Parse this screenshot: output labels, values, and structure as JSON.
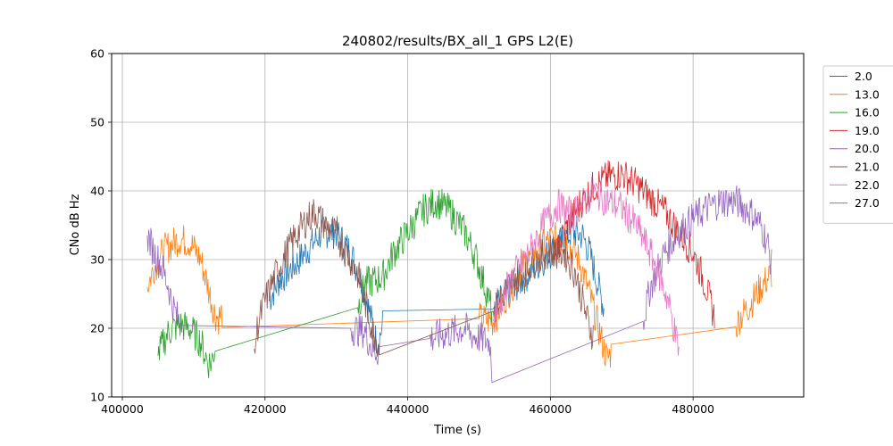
{
  "chart_data": {
    "type": "line",
    "title": "240802/results/BX_all_1 GPS L2(E)",
    "xlabel": "Time (s)",
    "ylabel": "CNo dB Hz",
    "xlim": [
      398500,
      495500
    ],
    "ylim": [
      10,
      60
    ],
    "xticks": [
      400000,
      420000,
      440000,
      460000,
      480000
    ],
    "xtick_labels": [
      "400000",
      "420000",
      "440000",
      "460000",
      "480000"
    ],
    "yticks": [
      10,
      20,
      30,
      40,
      50,
      60
    ],
    "ytick_labels": [
      "10",
      "20",
      "30",
      "40",
      "50",
      "60"
    ],
    "grid": true,
    "legend_position": "outside right, top",
    "series": [
      {
        "name": "2.0",
        "color": "#1f77b4",
        "points": [
          [
            420500,
            24
          ],
          [
            422000,
            27
          ],
          [
            424000,
            29
          ],
          [
            426000,
            31.5
          ],
          [
            428000,
            34
          ],
          [
            430000,
            34
          ],
          [
            432000,
            31
          ],
          [
            433500,
            27
          ],
          [
            434500,
            23
          ],
          [
            435500,
            18.5
          ],
          [
            436000,
            18.5
          ],
          [
            436500,
            20.5
          ],
          [
            452000,
            22.8
          ],
          [
            455000,
            26
          ],
          [
            458000,
            29
          ],
          [
            461000,
            32
          ],
          [
            463000,
            34
          ],
          [
            464500,
            33.5
          ],
          [
            465500,
            31
          ],
          [
            466500,
            27
          ],
          [
            467500,
            23
          ]
        ]
      },
      {
        "name": "13.0",
        "color": "#ff7f0e",
        "points": [
          [
            403500,
            26
          ],
          [
            404500,
            29
          ],
          [
            406000,
            31.5
          ],
          [
            408000,
            33
          ],
          [
            409500,
            32.5
          ],
          [
            411000,
            30
          ],
          [
            412000,
            26
          ],
          [
            413000,
            22
          ],
          [
            413500,
            21.5
          ],
          [
            414000,
            22.2
          ],
          [
            450000,
            21.4
          ],
          [
            452000,
            21
          ],
          [
            454000,
            25
          ],
          [
            456000,
            29
          ],
          [
            458000,
            31
          ],
          [
            460000,
            33
          ],
          [
            462000,
            33
          ],
          [
            464000,
            30
          ],
          [
            465500,
            25
          ],
          [
            466500,
            21
          ],
          [
            467500,
            17
          ],
          [
            468000,
            15.5
          ],
          [
            468500,
            16.5
          ],
          [
            486000,
            20.2
          ],
          [
            486500,
            21.5
          ],
          [
            488000,
            23.5
          ],
          [
            489500,
            26
          ],
          [
            491000,
            28
          ]
        ]
      },
      {
        "name": "16.0",
        "color": "#2ca02c",
        "points": [
          [
            405000,
            16
          ],
          [
            405800,
            18
          ],
          [
            406500,
            19.5
          ],
          [
            408000,
            20.5
          ],
          [
            409500,
            20
          ],
          [
            411000,
            18
          ],
          [
            412000,
            15
          ],
          [
            412500,
            15
          ],
          [
            413000,
            17.3
          ],
          [
            433000,
            23
          ],
          [
            434000,
            26.5
          ],
          [
            435500,
            27
          ],
          [
            436500,
            27.5
          ],
          [
            438000,
            31
          ],
          [
            440000,
            34
          ],
          [
            442000,
            37
          ],
          [
            444000,
            38.5
          ],
          [
            446000,
            37
          ],
          [
            448000,
            34
          ],
          [
            449500,
            30.5
          ],
          [
            451000,
            25.5
          ],
          [
            451800,
            22.5
          ]
        ]
      },
      {
        "name": "19.0",
        "color": "#d62728",
        "points": [
          [
            460500,
            30
          ],
          [
            462000,
            34
          ],
          [
            464000,
            38
          ],
          [
            466000,
            40.5
          ],
          [
            468000,
            42
          ],
          [
            470000,
            42.5
          ],
          [
            472000,
            41
          ],
          [
            474000,
            39
          ],
          [
            476000,
            37
          ],
          [
            478000,
            34
          ],
          [
            480000,
            31
          ],
          [
            481500,
            27
          ],
          [
            482500,
            23.5
          ],
          [
            483000,
            21.5
          ]
        ]
      },
      {
        "name": "20.0",
        "color": "#9467bd",
        "points": [
          [
            403500,
            33.5
          ],
          [
            404500,
            31
          ],
          [
            405500,
            29
          ],
          [
            406500,
            26
          ],
          [
            407000,
            23.5
          ],
          [
            408000,
            20.8
          ],
          [
            432000,
            20
          ],
          [
            434000,
            19.5
          ],
          [
            435000,
            17
          ],
          [
            436000,
            16.5
          ],
          [
            443000,
            18.5
          ],
          [
            448000,
            20
          ],
          [
            449000,
            19
          ],
          [
            451500,
            18
          ],
          [
            451800,
            13.8
          ],
          [
            473000,
            21
          ],
          [
            474000,
            26
          ],
          [
            476000,
            31
          ],
          [
            478000,
            34
          ],
          [
            480000,
            36
          ],
          [
            482000,
            37.5
          ],
          [
            484000,
            38.5
          ],
          [
            486000,
            38.5
          ],
          [
            488000,
            37
          ],
          [
            489500,
            35
          ],
          [
            490500,
            32
          ],
          [
            491000,
            29
          ]
        ]
      },
      {
        "name": "21.0",
        "color": "#8c564b",
        "points": [
          [
            418500,
            17
          ],
          [
            419000,
            20.5
          ],
          [
            420000,
            24
          ],
          [
            422000,
            29
          ],
          [
            424000,
            33
          ],
          [
            426000,
            36
          ],
          [
            427000,
            37
          ],
          [
            428000,
            35.5
          ],
          [
            430000,
            33.5
          ],
          [
            432000,
            30
          ],
          [
            433000,
            28
          ],
          [
            434000,
            24
          ],
          [
            435000,
            20
          ],
          [
            436000,
            17.5
          ],
          [
            452000,
            22.5
          ],
          [
            454000,
            26
          ],
          [
            456000,
            28
          ],
          [
            458000,
            30
          ],
          [
            460000,
            31.5
          ],
          [
            462000,
            31
          ],
          [
            463500,
            28
          ],
          [
            464500,
            24
          ],
          [
            465500,
            20
          ],
          [
            466000,
            19
          ]
        ]
      },
      {
        "name": "22.0",
        "color": "#e377c2",
        "points": [
          [
            452000,
            21
          ],
          [
            453000,
            24
          ],
          [
            455000,
            28
          ],
          [
            457000,
            31
          ],
          [
            459000,
            35
          ],
          [
            461000,
            38
          ],
          [
            463000,
            36.5
          ],
          [
            465000,
            38.5
          ],
          [
            466000,
            40
          ],
          [
            468000,
            38.5
          ],
          [
            470000,
            37.5
          ],
          [
            472000,
            35
          ],
          [
            474000,
            31
          ],
          [
            475500,
            27
          ],
          [
            476500,
            24
          ],
          [
            477500,
            19
          ],
          [
            478000,
            17
          ]
        ]
      },
      {
        "name": "27.0",
        "color": "#7f7f7f",
        "points": []
      }
    ]
  }
}
